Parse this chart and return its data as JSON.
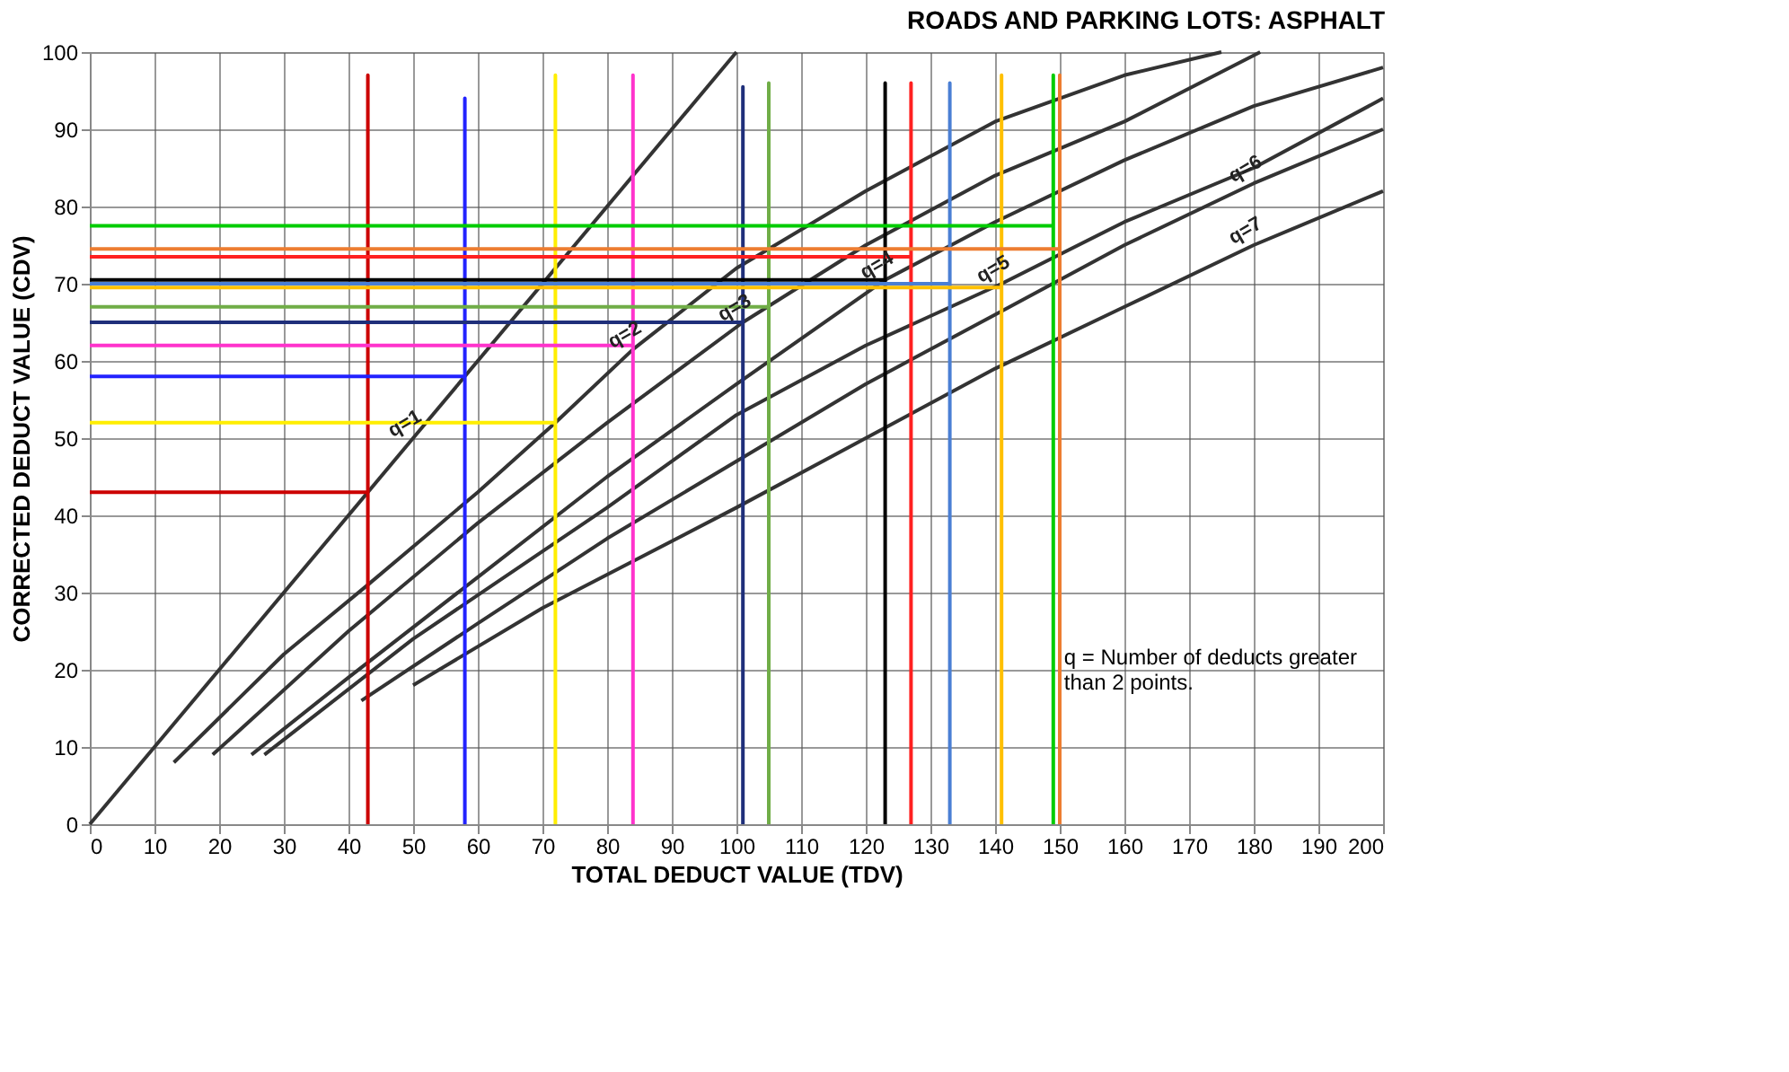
{
  "chart_data": {
    "type": "line",
    "title": "ROADS AND PARKING LOTS:  ASPHALT",
    "xlabel": "TOTAL DEDUCT VALUE (TDV)",
    "ylabel": "CORRECTED DEDUCT VALUE (CDV)",
    "xlim": [
      0,
      200
    ],
    "ylim": [
      0,
      100
    ],
    "xticks": [
      0,
      10,
      20,
      30,
      40,
      50,
      60,
      70,
      80,
      90,
      100,
      110,
      120,
      130,
      140,
      150,
      160,
      170,
      180,
      190,
      200
    ],
    "yticks": [
      0,
      10,
      20,
      30,
      40,
      50,
      60,
      70,
      80,
      90,
      100
    ],
    "grid": true,
    "marker": "none",
    "line_style": "solid",
    "series": [
      {
        "color": "#333333",
        "x": [
          0,
          50,
          100
        ],
        "values": [
          0,
          50,
          100
        ]
      },
      {
        "color": "#333333",
        "x": [
          13,
          30,
          43,
          60,
          72,
          84,
          100,
          120,
          140,
          160,
          175
        ],
        "values": [
          8,
          22,
          31,
          43,
          52,
          61.5,
          72,
          82,
          91,
          97,
          100
        ]
      },
      {
        "color": "#333333",
        "x": [
          19,
          40,
          60,
          80,
          101,
          120,
          140,
          160,
          181
        ],
        "values": [
          9,
          25,
          39,
          52,
          65,
          75,
          84,
          91,
          100
        ]
      },
      {
        "color": "#333333",
        "x": [
          25,
          40,
          60,
          80,
          100,
          123,
          140,
          160,
          180,
          200
        ],
        "values": [
          9,
          19,
          32,
          45,
          57,
          70.5,
          78,
          86,
          93,
          98
        ]
      },
      {
        "color": "#333333",
        "x": [
          27,
          50,
          80,
          100,
          120,
          141,
          160,
          180,
          200
        ],
        "values": [
          9,
          24,
          41,
          53,
          62,
          70,
          78,
          85,
          94
        ]
      },
      {
        "color": "#333333",
        "x": [
          42,
          60,
          80,
          100,
          120,
          140,
          160,
          180,
          200
        ],
        "values": [
          16,
          26,
          37,
          47,
          57,
          66,
          75,
          83,
          90
        ]
      },
      {
        "color": "#333333",
        "x": [
          50,
          70,
          100,
          120,
          140,
          160,
          180,
          200
        ],
        "values": [
          18,
          28,
          41,
          50,
          59,
          67,
          75,
          82
        ]
      },
      {
        "color": "#cc0000",
        "x": [
          43,
          43,
          43,
          0
        ],
        "values": [
          0,
          97,
          43,
          43
        ]
      },
      {
        "color": "#2222ff",
        "x": [
          58,
          58,
          58,
          0
        ],
        "values": [
          0,
          94,
          58,
          58
        ]
      },
      {
        "color": "#ffee00",
        "x": [
          72,
          72,
          72,
          0
        ],
        "values": [
          0,
          97,
          52,
          52
        ]
      },
      {
        "color": "#ff33cc",
        "x": [
          84,
          84,
          84,
          0
        ],
        "values": [
          0,
          97,
          62,
          62
        ]
      },
      {
        "color": "#1f2f7a",
        "x": [
          101,
          101,
          101,
          0
        ],
        "values": [
          0,
          95.5,
          65,
          65
        ]
      },
      {
        "color": "#70ad47",
        "x": [
          105,
          105,
          105,
          0
        ],
        "values": [
          0,
          96,
          67,
          67
        ]
      },
      {
        "color": "#000000",
        "x": [
          123,
          123,
          123,
          0
        ],
        "values": [
          0,
          96,
          70.5,
          70.5
        ]
      },
      {
        "color": "#ff2020",
        "x": [
          127,
          127,
          127,
          0
        ],
        "values": [
          0,
          96,
          73.5,
          73.5
        ]
      },
      {
        "color": "#4a7fd4",
        "x": [
          133,
          133,
          133,
          0
        ],
        "values": [
          0,
          96,
          70,
          70
        ]
      },
      {
        "color": "#ffc000",
        "x": [
          141,
          141,
          141,
          0
        ],
        "values": [
          0,
          97,
          69.5,
          69.5
        ]
      },
      {
        "color": "#00cc00",
        "x": [
          149,
          149,
          149,
          0
        ],
        "values": [
          0,
          97,
          77.5,
          77.5
        ]
      },
      {
        "color": "#ed7d31",
        "x": [
          150,
          150,
          150,
          0
        ],
        "values": [
          0,
          97,
          74.5,
          74.5
        ]
      }
    ],
    "annotations": [
      {
        "text": "q=1",
        "x": 50,
        "y": 50
      },
      {
        "text": "q=2",
        "x": 84,
        "y": 61.5
      },
      {
        "text": "q=3",
        "x": 101,
        "y": 65
      },
      {
        "text": "q=4",
        "x": 123,
        "y": 70.5
      },
      {
        "text": "q=5",
        "x": 141,
        "y": 70
      },
      {
        "text": "q=6",
        "x": 180,
        "y": 83
      },
      {
        "text": "q=7",
        "x": 180,
        "y": 75
      },
      "q = Number of deducts greater than 2 points."
    ]
  }
}
